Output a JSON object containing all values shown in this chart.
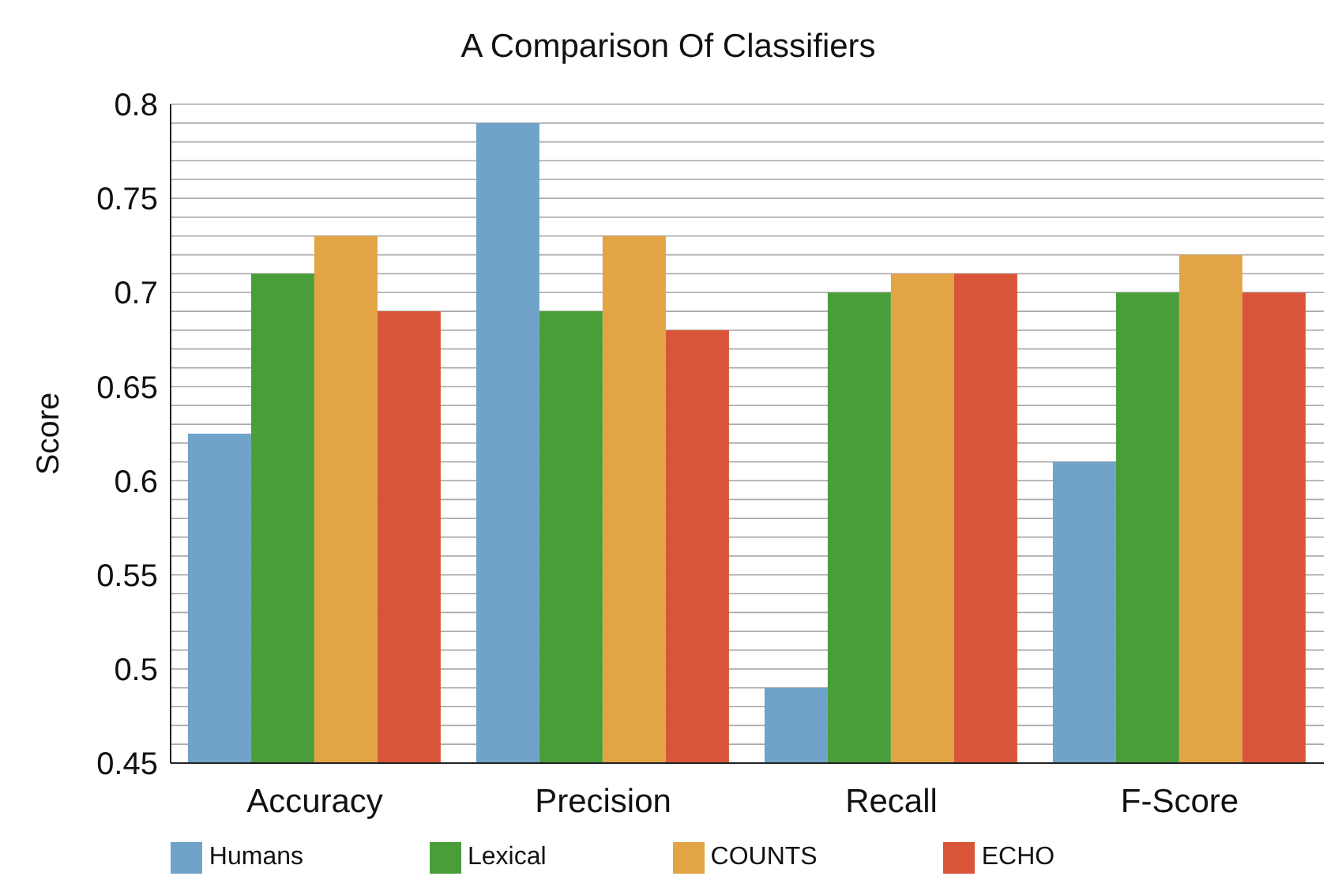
{
  "chart_data": {
    "type": "bar",
    "title": "A Comparison Of Classifiers",
    "ylabel": "Score",
    "categories": [
      "Accuracy",
      "Precision",
      "Recall",
      "F-Score"
    ],
    "series": [
      {
        "name": "Humans",
        "color": "#6fa3c8",
        "values": [
          0.625,
          0.79,
          0.49,
          0.61
        ]
      },
      {
        "name": "Lexical",
        "color": "#4a9e3a",
        "values": [
          0.71,
          0.69,
          0.7,
          0.7
        ]
      },
      {
        "name": "COUNTS",
        "color": "#e2a445",
        "values": [
          0.73,
          0.73,
          0.71,
          0.72
        ]
      },
      {
        "name": "ECHO",
        "color": "#d9553a",
        "values": [
          0.69,
          0.68,
          0.71,
          0.7
        ]
      }
    ],
    "ylim": [
      0.45,
      0.8
    ],
    "yticks": [
      0.45,
      {
        "value": 0.46,
        "label": null
      },
      {
        "value": 0.47,
        "label": null
      },
      {
        "value": 0.48,
        "label": null
      },
      {
        "value": 0.49,
        "label": null
      },
      0.5,
      {
        "value": 0.51,
        "label": null
      },
      {
        "value": 0.52,
        "label": null
      },
      {
        "value": 0.53,
        "label": null
      },
      {
        "value": 0.54,
        "label": null
      },
      0.55,
      {
        "value": 0.56,
        "label": null
      },
      {
        "value": 0.57,
        "label": null
      },
      {
        "value": 0.58,
        "label": null
      },
      {
        "value": 0.59,
        "label": null
      },
      0.6,
      {
        "value": 0.61,
        "label": null
      },
      {
        "value": 0.62,
        "label": null
      },
      {
        "value": 0.63,
        "label": null
      },
      {
        "value": 0.64,
        "label": null
      },
      0.65,
      {
        "value": 0.66,
        "label": null
      },
      {
        "value": 0.67,
        "label": null
      },
      {
        "value": 0.68,
        "label": null
      },
      {
        "value": 0.69,
        "label": null
      },
      0.7,
      {
        "value": 0.71,
        "label": null
      },
      {
        "value": 0.72,
        "label": null
      },
      {
        "value": 0.73,
        "label": null
      },
      {
        "value": 0.74,
        "label": null
      },
      0.75,
      {
        "value": 0.76,
        "label": null
      },
      {
        "value": 0.77,
        "label": null
      },
      {
        "value": 0.78,
        "label": null
      },
      {
        "value": 0.79,
        "label": null
      },
      0.8
    ],
    "grid": "y",
    "legend": "bottom"
  }
}
